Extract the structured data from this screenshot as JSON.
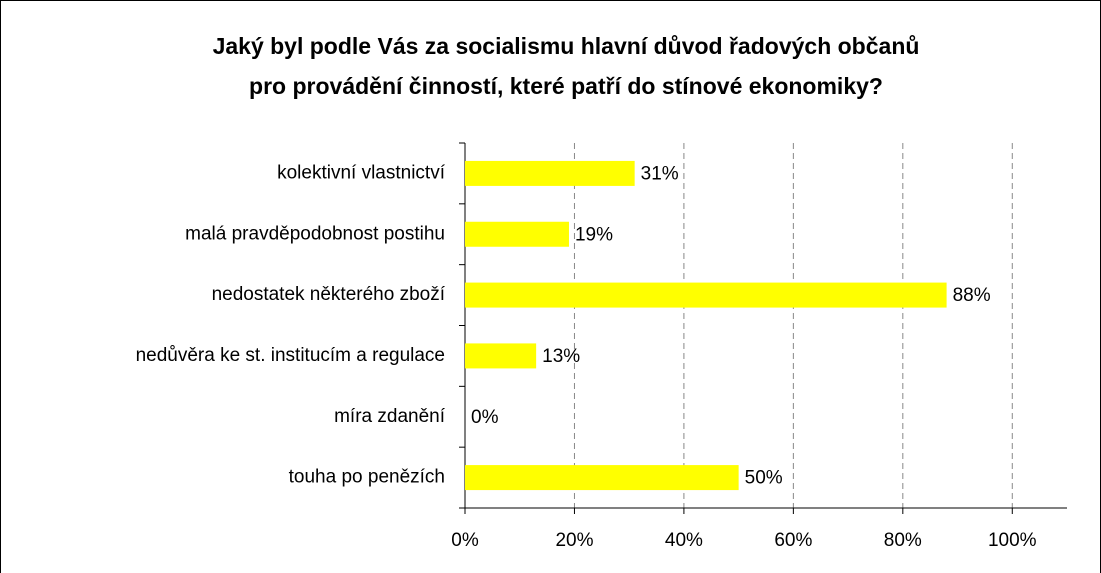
{
  "chart_data": {
    "type": "bar",
    "orientation": "horizontal",
    "title": [
      "Jaký byl podle Vás za socialismu hlavní důvod řadových občanů",
      "pro provádění činností, které patří do stínové ekonomiky?"
    ],
    "categories": [
      "kolektivní vlastnictví",
      "malá pravděpodobnost postihu",
      "nedostatek některého zboží",
      "nedůvěra ke st. institucím a regulace",
      "míra zdanění",
      "touha po penězích"
    ],
    "values": [
      31,
      19,
      88,
      13,
      0,
      50
    ],
    "value_labels": [
      "31%",
      "19%",
      "88%",
      "13%",
      "0%",
      "50%"
    ],
    "color": "#ffff00",
    "xlim": [
      0,
      110
    ],
    "xticks": [
      {
        "value": 0,
        "label": "0%"
      },
      {
        "value": 20,
        "label": "20%"
      },
      {
        "value": 40,
        "label": "40%"
      },
      {
        "value": 60,
        "label": "60%"
      },
      {
        "value": 80,
        "label": "80%"
      },
      {
        "value": 100,
        "label": "100%"
      }
    ],
    "grid": true
  }
}
